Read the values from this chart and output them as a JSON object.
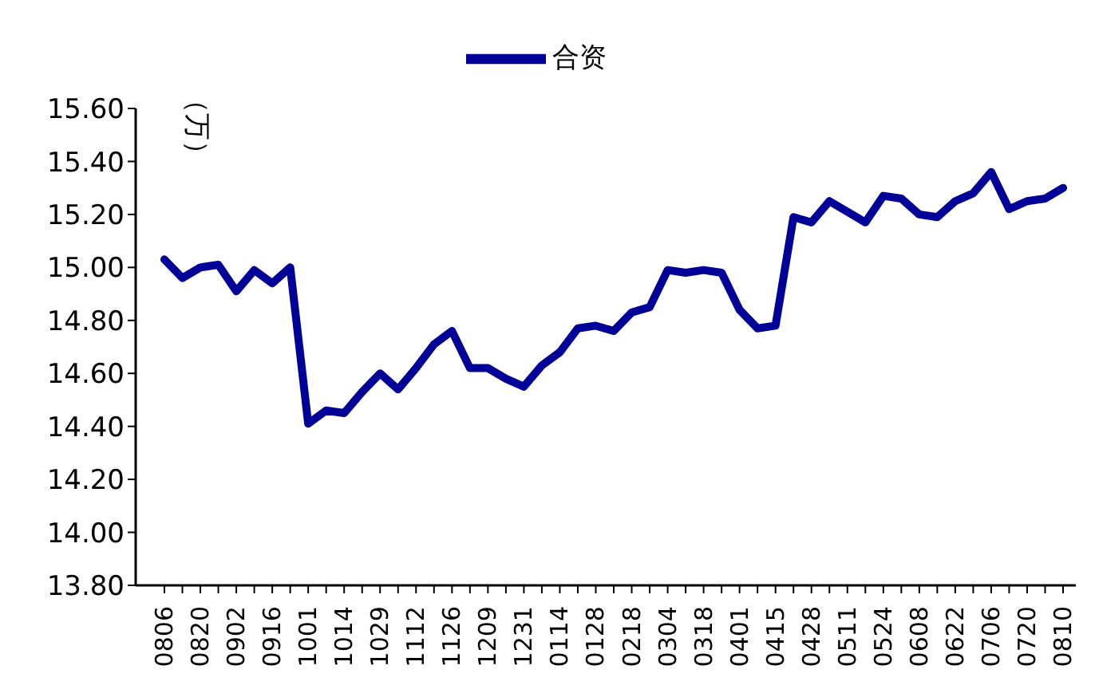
{
  "chart_data": {
    "type": "line",
    "ylabel": "（万）",
    "legend": "top",
    "grid": false,
    "marker": "none",
    "line_style": "solid",
    "categories": [
      "0806",
      null,
      "0820",
      null,
      "0902",
      null,
      "0916",
      null,
      "1001",
      null,
      "1014",
      null,
      "1029",
      null,
      "1112",
      null,
      "1126",
      null,
      "1209",
      null,
      "1231",
      null,
      "0114",
      null,
      "0128",
      null,
      "0218",
      null,
      "0304",
      null,
      "0318",
      null,
      "0401",
      null,
      "0415",
      null,
      "0428",
      null,
      "0511",
      null,
      "0524",
      null,
      "0608",
      null,
      "0622",
      null,
      "0706",
      null,
      "0720",
      null,
      "0810"
    ],
    "ylim": [
      13.8,
      15.6
    ],
    "yticks": [
      {
        "value": 13.8,
        "label": "13.80"
      },
      {
        "value": 14.0,
        "label": "14.00"
      },
      {
        "value": 14.2,
        "label": "14.20"
      },
      {
        "value": 14.4,
        "label": "14.40"
      },
      {
        "value": 14.6,
        "label": "14.60"
      },
      {
        "value": 14.8,
        "label": "14.80"
      },
      {
        "value": 15.0,
        "label": "15.00"
      },
      {
        "value": 15.2,
        "label": "15.20"
      },
      {
        "value": 15.4,
        "label": "15.40"
      },
      {
        "value": 15.6,
        "label": "15.60"
      }
    ],
    "series": [
      {
        "name": "合资",
        "color": "#000099",
        "values": [
          15.03,
          14.96,
          15.0,
          15.01,
          14.91,
          14.99,
          14.94,
          15.0,
          14.41,
          14.46,
          14.45,
          14.53,
          14.6,
          14.54,
          14.62,
          14.71,
          14.76,
          14.62,
          14.62,
          14.58,
          14.55,
          14.63,
          14.68,
          14.77,
          14.78,
          14.76,
          14.83,
          14.85,
          14.99,
          14.98,
          14.99,
          14.98,
          14.84,
          14.77,
          14.78,
          15.19,
          15.17,
          15.25,
          15.21,
          15.17,
          15.27,
          15.26,
          15.2,
          15.19,
          15.25,
          15.28,
          15.36,
          15.22,
          15.25,
          15.26,
          15.3
        ]
      }
    ]
  }
}
